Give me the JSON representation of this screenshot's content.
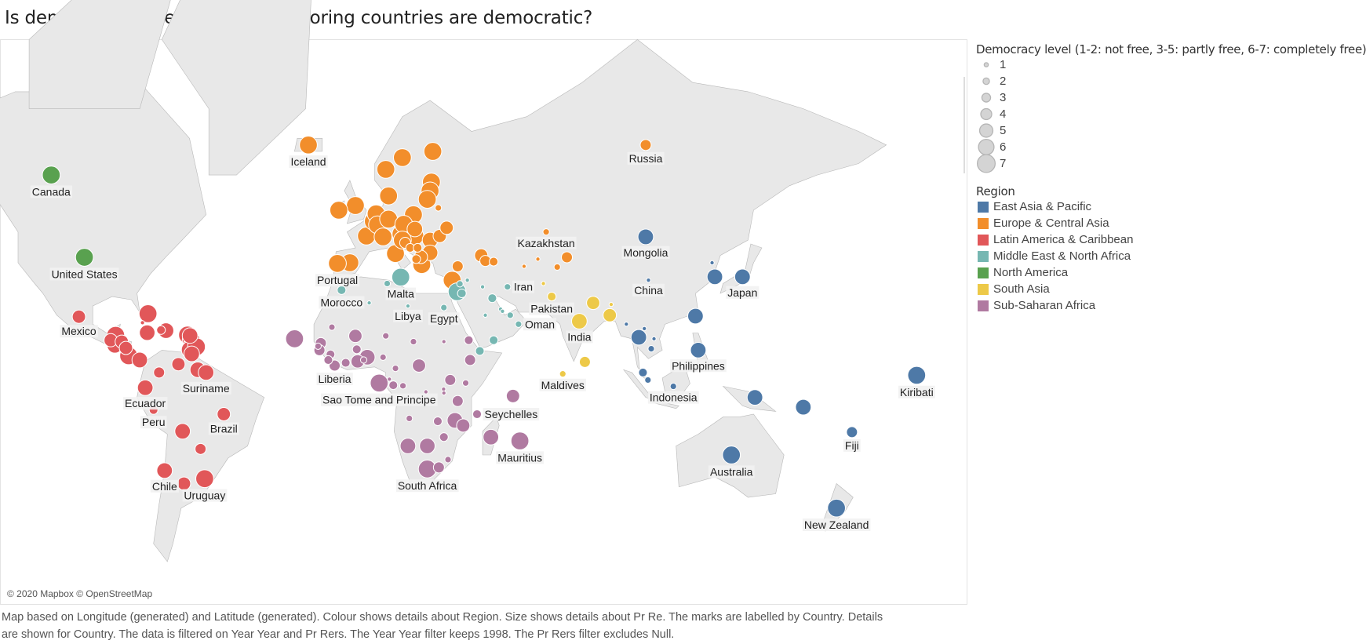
{
  "title": "Is democracy more likely if  neighboring countries are democratic?",
  "map": {
    "attribution": "© 2020 Mapbox © OpenStreetMap",
    "land_color": "#e8e8e8",
    "border_color": "#b8b8b8"
  },
  "footer": {
    "line1": "Map based on Longitude (generated) and Latitude (generated).  Colour shows details about Region.  Size shows details about Pr Re.  The marks are labelled by Country.  Details",
    "line2": "are shown for Country. The data is filtered on Year Year and Pr Rers. The Year Year filter keeps 1998. The Pr Rers filter excludes Null."
  },
  "legend": {
    "size_title": "Democracy level (1-2: not free, 3-5: partly free,  6-7: completely free)",
    "size_levels": [
      "1",
      "2",
      "3",
      "4",
      "5",
      "6",
      "7"
    ],
    "region_title": "Region",
    "regions": [
      {
        "name": "East Asia & Pacific",
        "color": "#4e79a7"
      },
      {
        "name": "Europe & Central Asia",
        "color": "#f28e2b"
      },
      {
        "name": "Latin America & Caribbean",
        "color": "#e15759"
      },
      {
        "name": "Middle East & North Africa",
        "color": "#76b7b2"
      },
      {
        "name": "North America",
        "color": "#59a14f"
      },
      {
        "name": "South Asia",
        "color": "#edc948"
      },
      {
        "name": "Sub-Saharan Africa",
        "color": "#b07aa1"
      }
    ]
  },
  "chart_data": {
    "type": "scatter",
    "title": "Is democracy more likely if  neighboring countries are democratic?",
    "encoding": {
      "color": "Region",
      "size": "Pr Re",
      "label": "Country"
    },
    "year": "1998",
    "marks": [
      {
        "country": "Canada",
        "lon": -112,
        "lat": 60,
        "level": 7,
        "region": 4
      },
      {
        "country": "United States",
        "lon": -100,
        "lat": 41.5,
        "level": 7,
        "region": 4
      },
      {
        "country": "Iceland",
        "lon": -19,
        "lat": 65,
        "level": 7,
        "region": 1
      },
      {
        "lon": -2,
        "lat": 54,
        "level": 7,
        "region": 1
      },
      {
        "lon": -8,
        "lat": 53,
        "level": 7,
        "region": 1
      },
      {
        "lon": 2,
        "lat": 47,
        "level": 7,
        "region": 1
      },
      {
        "lon": -4,
        "lat": 40,
        "level": 7,
        "region": 1
      },
      {
        "country": "Portugal",
        "lon": -8.5,
        "lat": 39.8,
        "level": 7,
        "region": 1
      },
      {
        "lon": 4.5,
        "lat": 50.5,
        "level": 7,
        "region": 1
      },
      {
        "lon": 5.5,
        "lat": 52.2,
        "level": 7,
        "region": 1
      },
      {
        "lon": 6,
        "lat": 49.7,
        "level": 7,
        "region": 1
      },
      {
        "lon": 10,
        "lat": 51,
        "level": 7,
        "region": 1
      },
      {
        "lon": 8,
        "lat": 46.8,
        "level": 7,
        "region": 1
      },
      {
        "lon": 14.5,
        "lat": 47.5,
        "level": 7,
        "region": 1
      },
      {
        "lon": 12.5,
        "lat": 42.5,
        "level": 7,
        "region": 1
      },
      {
        "lon": 10,
        "lat": 56,
        "level": 7,
        "region": 1
      },
      {
        "lon": 9,
        "lat": 61,
        "level": 7,
        "region": 1
      },
      {
        "lon": 15,
        "lat": 63,
        "level": 7,
        "region": 1
      },
      {
        "lon": 26,
        "lat": 64,
        "level": 7,
        "region": 1
      },
      {
        "lon": 25.5,
        "lat": 58.7,
        "level": 7,
        "region": 1
      },
      {
        "lon": 25,
        "lat": 57,
        "level": 7,
        "region": 1
      },
      {
        "lon": 24,
        "lat": 55.3,
        "level": 7,
        "region": 1
      },
      {
        "lon": 19,
        "lat": 52,
        "level": 7,
        "region": 1
      },
      {
        "lon": 15.5,
        "lat": 49.8,
        "level": 7,
        "region": 1
      },
      {
        "lon": 19.5,
        "lat": 48.7,
        "level": 6,
        "region": 1
      },
      {
        "lon": 19.5,
        "lat": 47,
        "level": 7,
        "region": 1
      },
      {
        "lon": 15,
        "lat": 46,
        "level": 7,
        "region": 1
      },
      {
        "lon": 16,
        "lat": 45.3,
        "level": 4,
        "region": 1
      },
      {
        "lon": 17.8,
        "lat": 44,
        "level": 3,
        "region": 1
      },
      {
        "lon": 20.5,
        "lat": 44,
        "level": 3,
        "region": 1
      },
      {
        "lon": 25,
        "lat": 46,
        "level": 6,
        "region": 1
      },
      {
        "lon": 25,
        "lat": 42.7,
        "level": 6,
        "region": 1
      },
      {
        "lon": 28.5,
        "lat": 47,
        "level": 5,
        "region": 1
      },
      {
        "lon": 31,
        "lat": 49,
        "level": 5,
        "region": 1
      },
      {
        "lon": 28,
        "lat": 53.5,
        "level": 2,
        "region": 1
      },
      {
        "lon": 22,
        "lat": 39.5,
        "level": 7,
        "region": 1
      },
      {
        "lon": 20,
        "lat": 41,
        "level": 3,
        "region": 1
      },
      {
        "lon": 21.7,
        "lat": 41.6,
        "level": 5,
        "region": 1
      },
      {
        "lon": 33,
        "lat": 35,
        "level": 7,
        "region": 1
      },
      {
        "lon": 35,
        "lat": 39,
        "level": 4,
        "region": 1
      },
      {
        "lon": 43.5,
        "lat": 42,
        "level": 5,
        "region": 1
      },
      {
        "lon": 45,
        "lat": 40.5,
        "level": 4,
        "region": 1
      },
      {
        "lon": 48,
        "lat": 40.3,
        "level": 3,
        "region": 1
      },
      {
        "country": "Russia",
        "lon": 103,
        "lat": 65,
        "level": 4,
        "region": 1
      },
      {
        "country": "Kazakhstan",
        "lon": 67,
        "lat": 48,
        "level": 2,
        "region": 1
      },
      {
        "lon": 64,
        "lat": 41,
        "level": 1,
        "region": 1
      },
      {
        "lon": 59,
        "lat": 39,
        "level": 1,
        "region": 1
      },
      {
        "lon": 74.5,
        "lat": 41.5,
        "level": 4,
        "region": 1
      },
      {
        "lon": 71,
        "lat": 38.8,
        "level": 2,
        "region": 1
      },
      {
        "country": "Malta",
        "lon": 14.4,
        "lat": 35.9,
        "level": 7,
        "region": 3
      },
      {
        "country": "Morocco",
        "lon": -7,
        "lat": 32,
        "level": 3,
        "region": 3
      },
      {
        "lon": 3,
        "lat": 28,
        "level": 1,
        "region": 3
      },
      {
        "lon": 9.5,
        "lat": 34,
        "level": 2,
        "region": 3
      },
      {
        "country": "Libya",
        "lon": 17,
        "lat": 27,
        "level": 1,
        "region": 3
      },
      {
        "country": "Egypt",
        "lon": 30,
        "lat": 26.5,
        "level": 2,
        "region": 3
      },
      {
        "lon": 34.8,
        "lat": 31.5,
        "level": 7,
        "region": 3
      },
      {
        "lon": 35.8,
        "lat": 33.9,
        "level": 2,
        "region": 3
      },
      {
        "lon": 36.5,
        "lat": 31,
        "level": 3,
        "region": 3
      },
      {
        "lon": 38.5,
        "lat": 35,
        "level": 1,
        "region": 3
      },
      {
        "lon": 44,
        "lat": 33,
        "level": 1,
        "region": 3
      },
      {
        "country": "Iran",
        "lon": 53,
        "lat": 33,
        "level": 2,
        "region": 3
      },
      {
        "lon": 47.5,
        "lat": 29.5,
        "level": 3,
        "region": 3
      },
      {
        "lon": 45,
        "lat": 24,
        "level": 1,
        "region": 3
      },
      {
        "lon": 50.5,
        "lat": 26,
        "level": 1,
        "region": 3
      },
      {
        "lon": 51.2,
        "lat": 25.3,
        "level": 1,
        "region": 3
      },
      {
        "lon": 54,
        "lat": 24,
        "level": 2,
        "region": 3
      },
      {
        "country": "Oman",
        "lon": 57,
        "lat": 21,
        "level": 2,
        "region": 3
      },
      {
        "lon": 48,
        "lat": 15.5,
        "level": 3,
        "region": 3
      },
      {
        "lon": 43,
        "lat": 11.7,
        "level": 3,
        "region": 3
      },
      {
        "country": "Pakistan",
        "lon": 69,
        "lat": 30,
        "level": 3,
        "region": 5
      },
      {
        "country": "India",
        "lon": 79,
        "lat": 22,
        "level": 6,
        "region": 5
      },
      {
        "lon": 84,
        "lat": 28,
        "level": 5,
        "region": 5
      },
      {
        "lon": 90.5,
        "lat": 27.5,
        "level": 1,
        "region": 5
      },
      {
        "lon": 90,
        "lat": 24,
        "level": 5,
        "region": 5
      },
      {
        "lon": 81,
        "lat": 7.8,
        "level": 4,
        "region": 5
      },
      {
        "country": "Maldives",
        "lon": 73,
        "lat": 3.5,
        "level": 2,
        "region": 5
      },
      {
        "lon": 66,
        "lat": 34,
        "level": 1,
        "region": 5
      },
      {
        "country": "Mongolia",
        "lon": 103,
        "lat": 46.8,
        "level": 6,
        "region": 0
      },
      {
        "country": "China",
        "lon": 104,
        "lat": 35,
        "level": 1,
        "region": 0
      },
      {
        "country": "Japan",
        "lon": 138,
        "lat": 36,
        "level": 6,
        "region": 0
      },
      {
        "lon": 128,
        "lat": 36,
        "level": 6,
        "region": 0
      },
      {
        "lon": 127,
        "lat": 40,
        "level": 1,
        "region": 0
      },
      {
        "lon": 121,
        "lat": 23.7,
        "level": 6,
        "region": 0
      },
      {
        "country": "Philippines",
        "lon": 122,
        "lat": 12,
        "level": 6,
        "region": 0
      },
      {
        "lon": 106,
        "lat": 16,
        "level": 1,
        "region": 0
      },
      {
        "lon": 102.5,
        "lat": 19.5,
        "level": 1,
        "region": 0
      },
      {
        "lon": 105,
        "lat": 12.5,
        "level": 2,
        "region": 0
      },
      {
        "lon": 100.5,
        "lat": 16.5,
        "level": 6,
        "region": 0
      },
      {
        "lon": 96,
        "lat": 21,
        "level": 1,
        "region": 0
      },
      {
        "lon": 102,
        "lat": 4,
        "level": 3,
        "region": 0
      },
      {
        "lon": 103.8,
        "lat": 1.3,
        "level": 2,
        "region": 0
      },
      {
        "country": "Indonesia",
        "lon": 113,
        "lat": -1,
        "level": 2,
        "region": 0
      },
      {
        "lon": 142.5,
        "lat": -5,
        "level": 6,
        "region": 0
      },
      {
        "lon": 160,
        "lat": -8.5,
        "level": 6,
        "region": 0
      },
      {
        "country": "Fiji",
        "lon": 177.6,
        "lat": -17.3,
        "level": 4,
        "region": 0
      },
      {
        "country": "Kiribati",
        "lon": 201,
        "lat": 3,
        "level": 7,
        "region": 0
      },
      {
        "country": "Australia",
        "lon": 134,
        "lat": -25,
        "level": 7,
        "region": 0
      },
      {
        "country": "New Zealand",
        "lon": 172,
        "lat": -41,
        "level": 7,
        "region": 0
      },
      {
        "country": "Mexico",
        "lon": -102,
        "lat": 23.5,
        "level": 5,
        "region": 2
      },
      {
        "lon": -90.5,
        "lat": 15.5,
        "level": 5,
        "region": 2
      },
      {
        "lon": -88.7,
        "lat": 17.2,
        "level": 7,
        "region": 2
      },
      {
        "lon": -86.5,
        "lat": 15,
        "level": 5,
        "region": 2
      },
      {
        "lon": -89,
        "lat": 13.7,
        "level": 6,
        "region": 2
      },
      {
        "lon": -85,
        "lat": 12.8,
        "level": 5,
        "region": 2
      },
      {
        "lon": -84,
        "lat": 10,
        "level": 7,
        "region": 2
      },
      {
        "lon": -80,
        "lat": 8.5,
        "level": 6,
        "region": 2
      },
      {
        "lon": -77,
        "lat": 24.5,
        "level": 7,
        "region": 2
      },
      {
        "lon": -77.3,
        "lat": 18.1,
        "level": 6,
        "region": 2
      },
      {
        "lon": -72.3,
        "lat": 19,
        "level": 3,
        "region": 2
      },
      {
        "lon": -70.5,
        "lat": 18.8,
        "level": 6,
        "region": 2
      },
      {
        "lon": -79,
        "lat": 21.5,
        "level": 1,
        "region": 2
      },
      {
        "lon": -61.8,
        "lat": 17.1,
        "level": 6,
        "region": 2
      },
      {
        "lon": -62.7,
        "lat": 17.3,
        "level": 7,
        "region": 2
      },
      {
        "lon": -61.4,
        "lat": 15.4,
        "level": 7,
        "region": 2
      },
      {
        "lon": -61,
        "lat": 13.9,
        "level": 7,
        "region": 2
      },
      {
        "lon": -61.2,
        "lat": 13.2,
        "level": 7,
        "region": 2
      },
      {
        "lon": -61.7,
        "lat": 12.1,
        "level": 7,
        "region": 2
      },
      {
        "lon": -59.5,
        "lat": 13.2,
        "level": 7,
        "region": 2
      },
      {
        "lon": -61.2,
        "lat": 10.7,
        "level": 6,
        "region": 2
      },
      {
        "lon": -66,
        "lat": 7,
        "level": 5,
        "region": 2
      },
      {
        "lon": -73,
        "lat": 4,
        "level": 4,
        "region": 2
      },
      {
        "lon": -59,
        "lat": 5,
        "level": 6,
        "region": 2
      },
      {
        "country": "Suriname",
        "lon": -56,
        "lat": 4,
        "level": 6,
        "region": 2
      },
      {
        "country": "Ecuador",
        "lon": -78,
        "lat": -1.5,
        "level": 6,
        "region": 2
      },
      {
        "country": "Peru",
        "lon": -75,
        "lat": -9.5,
        "level": 3,
        "region": 2
      },
      {
        "country": "Brazil",
        "lon": -49.6,
        "lat": -11,
        "level": 5,
        "region": 2
      },
      {
        "lon": -64.5,
        "lat": -17,
        "level": 6,
        "region": 2
      },
      {
        "lon": -58,
        "lat": -23,
        "level": 4,
        "region": 2
      },
      {
        "country": "Chile",
        "lon": -71,
        "lat": -30,
        "level": 6,
        "region": 2
      },
      {
        "lon": -64,
        "lat": -34,
        "level": 5,
        "region": 2
      },
      {
        "country": "Uruguay",
        "lon": -56.5,
        "lat": -32.5,
        "level": 7,
        "region": 2
      },
      {
        "lon": -24,
        "lat": 16,
        "level": 7,
        "region": 6
      },
      {
        "lon": -10.5,
        "lat": 20,
        "level": 2,
        "region": 6
      },
      {
        "lon": -14.5,
        "lat": 14.5,
        "level": 4,
        "region": 6
      },
      {
        "lon": -15.5,
        "lat": 13.4,
        "level": 2,
        "region": 6
      },
      {
        "lon": -15,
        "lat": 12,
        "level": 4,
        "region": 6
      },
      {
        "lon": -11,
        "lat": 10.5,
        "level": 3,
        "region": 6
      },
      {
        "lon": -11.8,
        "lat": 8.5,
        "level": 3,
        "region": 6
      },
      {
        "country": "Liberia",
        "lon": -9.5,
        "lat": 6.5,
        "level": 4,
        "region": 6
      },
      {
        "lon": -5.5,
        "lat": 7.5,
        "level": 3,
        "region": 6
      },
      {
        "lon": -2,
        "lat": 17,
        "level": 5,
        "region": 6
      },
      {
        "lon": -1.5,
        "lat": 12.3,
        "level": 3,
        "region": 6
      },
      {
        "lon": -1.2,
        "lat": 8,
        "level": 5,
        "region": 6
      },
      {
        "lon": 1,
        "lat": 8.5,
        "level": 2,
        "region": 6
      },
      {
        "lon": 2.3,
        "lat": 9.5,
        "level": 6,
        "region": 6
      },
      {
        "lon": 9,
        "lat": 17,
        "level": 2,
        "region": 6
      },
      {
        "lon": 8,
        "lat": 9.5,
        "level": 2,
        "region": 6
      },
      {
        "lon": 19,
        "lat": 15,
        "level": 2,
        "region": 6
      },
      {
        "lon": 30,
        "lat": 15,
        "level": 1,
        "region": 6
      },
      {
        "lon": 39,
        "lat": 15.5,
        "level": 3,
        "region": 6
      },
      {
        "lon": 39.5,
        "lat": 8.5,
        "level": 4,
        "region": 6
      },
      {
        "lon": 21,
        "lat": 6.5,
        "level": 5,
        "region": 6
      },
      {
        "lon": 12.5,
        "lat": 5.5,
        "level": 2,
        "region": 6
      },
      {
        "lon": 10.3,
        "lat": 1.6,
        "level": 1,
        "region": 6
      },
      {
        "country": "Sao Tome and Principe",
        "lon": 6.6,
        "lat": 0.2,
        "level": 7,
        "region": 6
      },
      {
        "lon": 11.7,
        "lat": -0.6,
        "level": 3,
        "region": 6
      },
      {
        "lon": 15.2,
        "lat": -0.8,
        "level": 2,
        "region": 6
      },
      {
        "lon": 23.5,
        "lat": -3,
        "level": 1,
        "region": 6
      },
      {
        "lon": 32.3,
        "lat": 1.3,
        "level": 4,
        "region": 6
      },
      {
        "lon": 37.9,
        "lat": 0.2,
        "level": 2,
        "region": 6
      },
      {
        "lon": 29.9,
        "lat": -2,
        "level": 1,
        "region": 6
      },
      {
        "lon": 30,
        "lat": -3.4,
        "level": 1,
        "region": 6
      },
      {
        "lon": 35,
        "lat": -6.3,
        "level": 4,
        "region": 6
      },
      {
        "lon": 17.5,
        "lat": -12.5,
        "level": 2,
        "region": 6
      },
      {
        "lon": 27.8,
        "lat": -13.5,
        "level": 3,
        "region": 6
      },
      {
        "lon": 34,
        "lat": -13.2,
        "level": 6,
        "region": 6
      },
      {
        "lon": 37,
        "lat": -15,
        "level": 5,
        "region": 6
      },
      {
        "lon": 30,
        "lat": -19,
        "level": 3,
        "region": 6
      },
      {
        "lon": 17,
        "lat": -22,
        "level": 6,
        "region": 6
      },
      {
        "lon": 24,
        "lat": -22,
        "level": 6,
        "region": 6
      },
      {
        "country": "South Africa",
        "lon": 24,
        "lat": -29.5,
        "level": 7,
        "region": 6
      },
      {
        "lon": 28.2,
        "lat": -29,
        "level": 4,
        "region": 6
      },
      {
        "lon": 31.5,
        "lat": -26.5,
        "level": 2,
        "region": 6
      },
      {
        "lon": 47,
        "lat": -19,
        "level": 6,
        "region": 6
      },
      {
        "country": "Seychelles",
        "lon": 42,
        "lat": -11,
        "level": 3,
        "region": 6
      },
      {
        "lon": 55,
        "lat": -4.5,
        "level": 5,
        "region": 6
      },
      {
        "country": "Mauritius",
        "lon": 57.5,
        "lat": -20.3,
        "level": 7,
        "region": 6
      }
    ]
  }
}
